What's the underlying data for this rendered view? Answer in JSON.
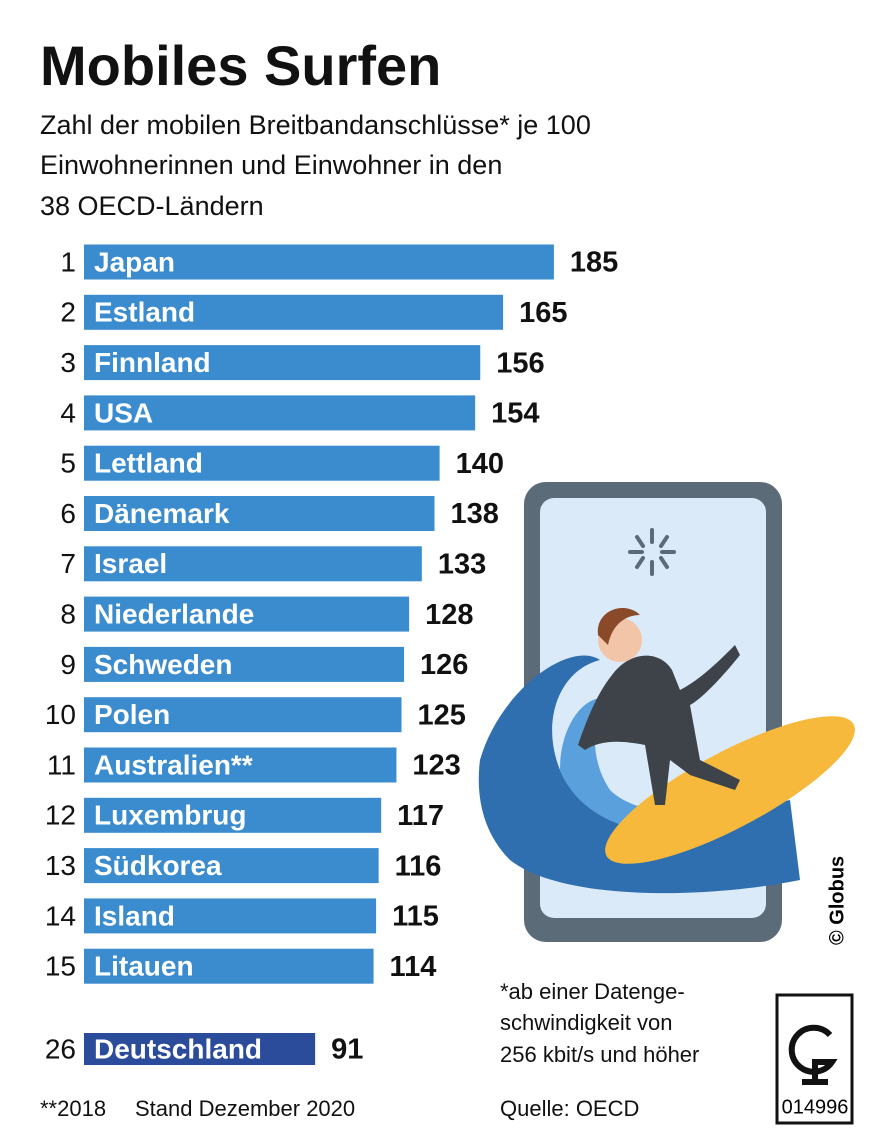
{
  "chart_data": {
    "type": "bar",
    "title": "Mobiles Surfen",
    "subtitle": [
      "Zahl der mobilen Breitbandanschlüsse* je 100",
      "Einwohnerinnen und Einwohner in den",
      "38 OECD-Ländern"
    ],
    "ranks": [
      1,
      2,
      3,
      4,
      5,
      6,
      7,
      8,
      9,
      10,
      11,
      12,
      13,
      14,
      15,
      26
    ],
    "categories": [
      "Japan",
      "Estland",
      "Finnland",
      "USA",
      "Lettland",
      "Dänemark",
      "Israel",
      "Niederlande",
      "Schweden",
      "Polen",
      "Australien**",
      "Luxembrug",
      "Südkorea",
      "Island",
      "Litauen",
      "Deutschland"
    ],
    "values": [
      185,
      165,
      156,
      154,
      140,
      138,
      133,
      128,
      126,
      125,
      123,
      117,
      116,
      115,
      114,
      91
    ],
    "bar_colors": [
      "#3a8ccf",
      "#3a8ccf",
      "#3a8ccf",
      "#3a8ccf",
      "#3a8ccf",
      "#3a8ccf",
      "#3a8ccf",
      "#3a8ccf",
      "#3a8ccf",
      "#3a8ccf",
      "#3a8ccf",
      "#3a8ccf",
      "#3a8ccf",
      "#3a8ccf",
      "#3a8ccf",
      "#2b4c9b"
    ],
    "footnote": [
      "*ab einer Datenge-",
      "schwindigkeit von",
      "256 kbit/s und höher"
    ],
    "note_year": "**2018",
    "note_date": "Stand Dezember 2020",
    "source": "Quelle: OECD",
    "credit": "© Globus",
    "logo_code": "014996"
  }
}
